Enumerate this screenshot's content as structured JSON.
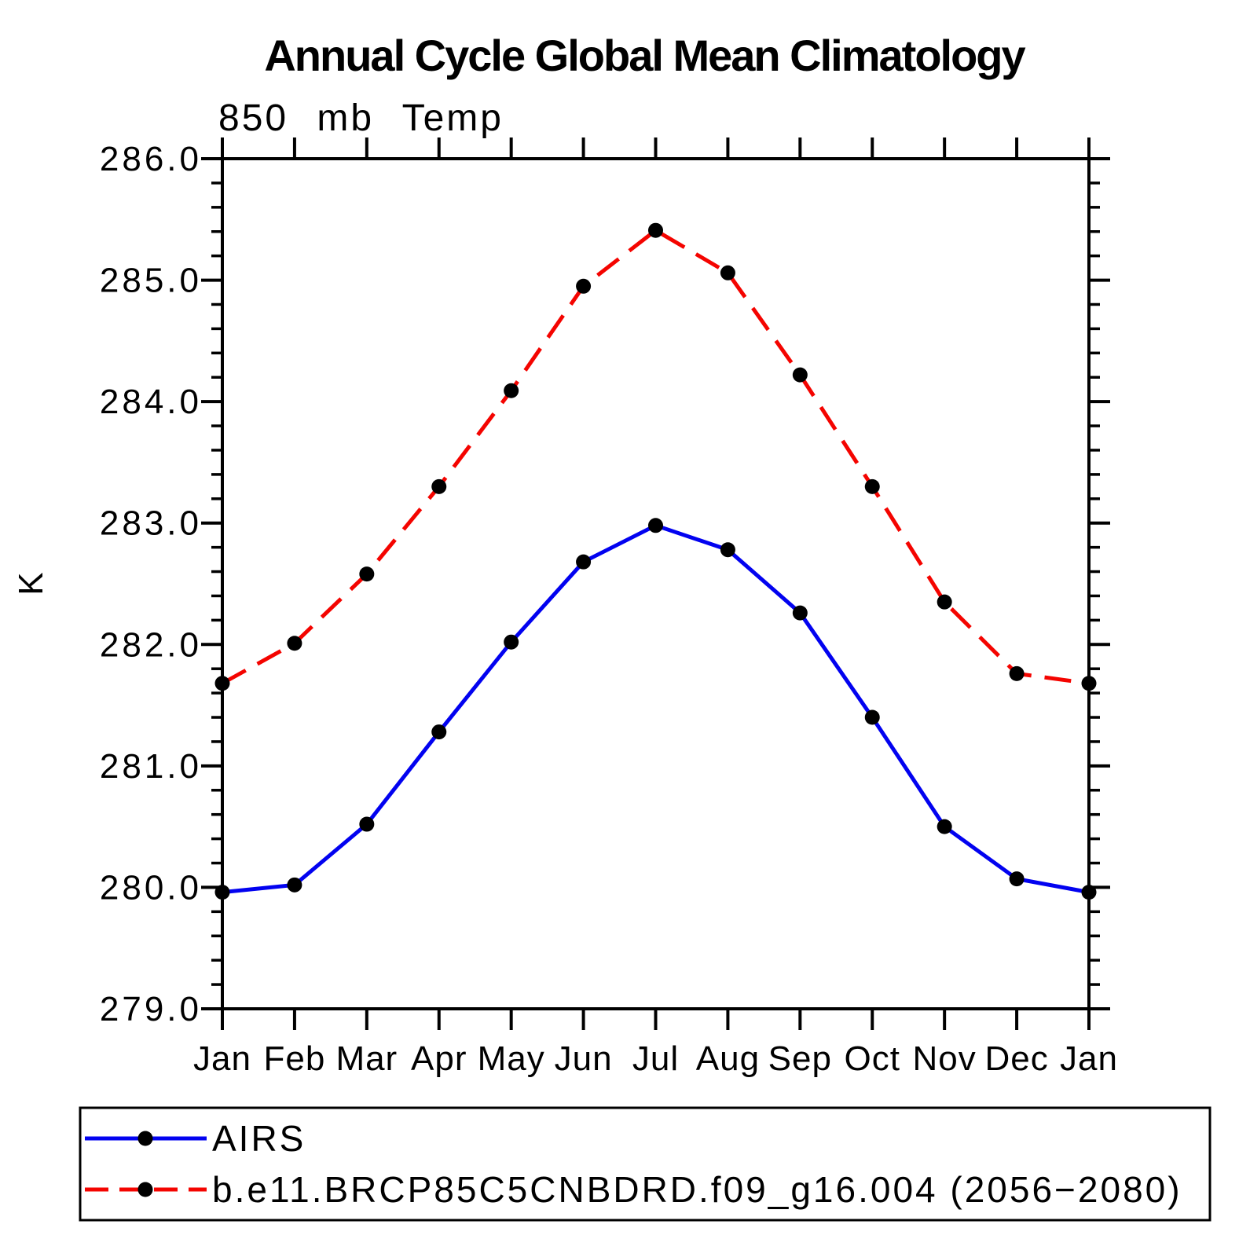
{
  "chart_data": {
    "type": "line",
    "title": "Annual Cycle Global Mean Climatology",
    "subtitle": "850 mb Temp",
    "xlabel": "",
    "ylabel": "K",
    "categories": [
      "Jan",
      "Feb",
      "Mar",
      "Apr",
      "May",
      "Jun",
      "Jul",
      "Aug",
      "Sep",
      "Oct",
      "Nov",
      "Dec",
      "Jan"
    ],
    "ylim": [
      279.0,
      286.0
    ],
    "y_major_tick_step": 1.0,
    "y_minor_tick_step": 0.2,
    "y_tick_labels": [
      "286.0",
      "285.0",
      "284.0",
      "283.0",
      "282.0",
      "281.0",
      "280.0",
      "279.0"
    ],
    "grid": false,
    "legend_position": "bottom-left-box",
    "axis_color": "#000000",
    "marker_shape": "filled-circle",
    "series": [
      {
        "name": "AIRS",
        "line_color": "#0202f0",
        "line_style": "solid",
        "marker_color": "#000000",
        "values": [
          279.96,
          280.02,
          280.52,
          281.28,
          282.02,
          282.68,
          282.98,
          282.78,
          282.26,
          281.4,
          280.5,
          280.07,
          279.96
        ]
      },
      {
        "name": "b.e11.BRCP85C5CNBDRD.f09_g16.004 (2056−2080)",
        "line_color": "#f40400",
        "line_style": "dashed",
        "marker_color": "#000000",
        "values": [
          281.68,
          282.01,
          282.58,
          283.3,
          284.09,
          284.95,
          285.41,
          285.06,
          284.22,
          283.3,
          282.35,
          281.76,
          281.68
        ]
      }
    ]
  }
}
